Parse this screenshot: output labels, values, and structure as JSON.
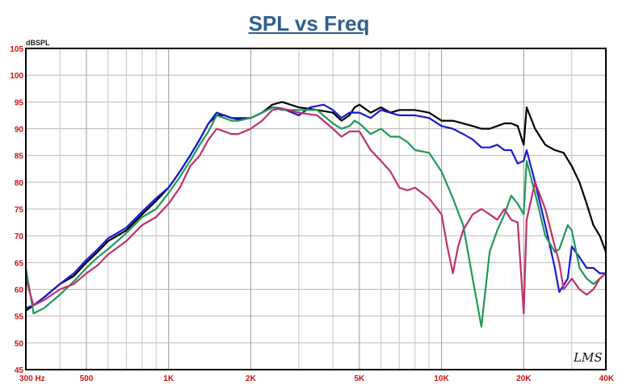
{
  "chart_data": {
    "type": "line",
    "title": "SPL vs Freq",
    "ylabel": "dBSPL",
    "xlabel": "",
    "xscale": "log",
    "xlim": [
      300,
      40000
    ],
    "ylim": [
      45,
      105
    ],
    "yticks": [
      45,
      50,
      55,
      60,
      65,
      70,
      75,
      80,
      85,
      90,
      95,
      100,
      105
    ],
    "xticks": [
      {
        "value": 300,
        "label": "300 Hz"
      },
      {
        "value": 500,
        "label": "500"
      },
      {
        "value": 1000,
        "label": "1K"
      },
      {
        "value": 2000,
        "label": "2K"
      },
      {
        "value": 5000,
        "label": "5K"
      },
      {
        "value": 10000,
        "label": "10K"
      },
      {
        "value": 20000,
        "label": "20K"
      },
      {
        "value": 40000,
        "label": "40K"
      }
    ],
    "grid": true,
    "watermark": "LMS",
    "series": [
      {
        "color": "#000000",
        "points": [
          [
            300,
            56
          ],
          [
            320,
            57
          ],
          [
            350,
            58.5
          ],
          [
            400,
            61
          ],
          [
            450,
            62.5
          ],
          [
            500,
            65
          ],
          [
            550,
            67
          ],
          [
            600,
            69
          ],
          [
            700,
            71
          ],
          [
            800,
            74
          ],
          [
            900,
            76.5
          ],
          [
            1000,
            79
          ],
          [
            1100,
            82
          ],
          [
            1200,
            85
          ],
          [
            1300,
            88
          ],
          [
            1400,
            91
          ],
          [
            1500,
            92.5
          ],
          [
            1600,
            92.5
          ],
          [
            1700,
            92
          ],
          [
            1800,
            91.8
          ],
          [
            2000,
            92
          ],
          [
            2200,
            93
          ],
          [
            2400,
            94.5
          ],
          [
            2600,
            95
          ],
          [
            3000,
            94
          ],
          [
            3500,
            93.5
          ],
          [
            4000,
            93
          ],
          [
            4300,
            91.5
          ],
          [
            4600,
            92.5
          ],
          [
            4800,
            94
          ],
          [
            5000,
            94.5
          ],
          [
            5500,
            93
          ],
          [
            6000,
            94
          ],
          [
            6500,
            93
          ],
          [
            7000,
            93.5
          ],
          [
            7500,
            93.5
          ],
          [
            8000,
            93.5
          ],
          [
            9000,
            93
          ],
          [
            10000,
            91.5
          ],
          [
            11000,
            91.5
          ],
          [
            12000,
            91
          ],
          [
            13000,
            90.5
          ],
          [
            14000,
            90
          ],
          [
            15000,
            90
          ],
          [
            16000,
            90.5
          ],
          [
            17000,
            91
          ],
          [
            18000,
            91
          ],
          [
            19000,
            90.5
          ],
          [
            20000,
            87
          ],
          [
            20500,
            94
          ],
          [
            22000,
            90
          ],
          [
            24000,
            87
          ],
          [
            26000,
            86
          ],
          [
            28000,
            85.5
          ],
          [
            30000,
            83
          ],
          [
            32000,
            80
          ],
          [
            34000,
            76
          ],
          [
            36000,
            72
          ],
          [
            38000,
            70
          ],
          [
            40000,
            67
          ]
        ]
      },
      {
        "color": "#1a1ad0",
        "points": [
          [
            300,
            56.5
          ],
          [
            320,
            57
          ],
          [
            350,
            58.5
          ],
          [
            400,
            61
          ],
          [
            450,
            63
          ],
          [
            500,
            65.5
          ],
          [
            550,
            67.5
          ],
          [
            600,
            69.5
          ],
          [
            700,
            71.5
          ],
          [
            800,
            74.5
          ],
          [
            900,
            77
          ],
          [
            1000,
            79
          ],
          [
            1100,
            82
          ],
          [
            1200,
            85
          ],
          [
            1300,
            88
          ],
          [
            1400,
            91
          ],
          [
            1500,
            93
          ],
          [
            1600,
            92.5
          ],
          [
            1700,
            92
          ],
          [
            1800,
            92
          ],
          [
            2000,
            92
          ],
          [
            2200,
            93
          ],
          [
            2400,
            94
          ],
          [
            2600,
            93.8
          ],
          [
            3000,
            92.5
          ],
          [
            3300,
            94
          ],
          [
            3700,
            94.5
          ],
          [
            4000,
            93.5
          ],
          [
            4300,
            92
          ],
          [
            4600,
            93
          ],
          [
            5000,
            93
          ],
          [
            5500,
            92
          ],
          [
            6000,
            93.5
          ],
          [
            7000,
            92.5
          ],
          [
            8000,
            92.5
          ],
          [
            9000,
            92
          ],
          [
            10000,
            90.5
          ],
          [
            11000,
            90
          ],
          [
            12000,
            89
          ],
          [
            13000,
            88
          ],
          [
            14000,
            86.5
          ],
          [
            15000,
            86.5
          ],
          [
            16000,
            87
          ],
          [
            17000,
            86
          ],
          [
            18000,
            86
          ],
          [
            19000,
            83.5
          ],
          [
            20000,
            84
          ],
          [
            20500,
            86
          ],
          [
            22000,
            80
          ],
          [
            24000,
            72
          ],
          [
            26000,
            64
          ],
          [
            27000,
            59.5
          ],
          [
            29000,
            62
          ],
          [
            30000,
            68
          ],
          [
            32000,
            66
          ],
          [
            34000,
            64
          ],
          [
            36000,
            64
          ],
          [
            38000,
            63
          ],
          [
            40000,
            63
          ]
        ]
      },
      {
        "color": "#1f9a55",
        "points": [
          [
            300,
            64
          ],
          [
            320,
            55.5
          ],
          [
            350,
            56.5
          ],
          [
            400,
            59
          ],
          [
            450,
            61.5
          ],
          [
            500,
            64
          ],
          [
            550,
            66
          ],
          [
            600,
            67.5
          ],
          [
            700,
            70.5
          ],
          [
            800,
            73.5
          ],
          [
            900,
            75
          ],
          [
            1000,
            78
          ],
          [
            1100,
            81
          ],
          [
            1200,
            84
          ],
          [
            1300,
            87
          ],
          [
            1400,
            89.5
          ],
          [
            1500,
            92.5
          ],
          [
            1600,
            92
          ],
          [
            1700,
            91.5
          ],
          [
            1800,
            91.5
          ],
          [
            2000,
            92
          ],
          [
            2200,
            93
          ],
          [
            2400,
            94
          ],
          [
            2600,
            93.5
          ],
          [
            3000,
            93.5
          ],
          [
            3500,
            93.5
          ],
          [
            4000,
            91
          ],
          [
            4300,
            90
          ],
          [
            4600,
            90.5
          ],
          [
            4800,
            91.5
          ],
          [
            5000,
            91
          ],
          [
            5500,
            89
          ],
          [
            6000,
            90
          ],
          [
            6500,
            88.5
          ],
          [
            7000,
            88.5
          ],
          [
            7500,
            87.5
          ],
          [
            8000,
            86
          ],
          [
            9000,
            85.5
          ],
          [
            10000,
            82
          ],
          [
            11000,
            77
          ],
          [
            12000,
            72
          ],
          [
            13000,
            62
          ],
          [
            14000,
            53
          ],
          [
            15000,
            67
          ],
          [
            16000,
            71
          ],
          [
            17000,
            74
          ],
          [
            18000,
            77.5
          ],
          [
            19000,
            76
          ],
          [
            20000,
            74
          ],
          [
            20500,
            84
          ],
          [
            22000,
            78
          ],
          [
            24000,
            70
          ],
          [
            26000,
            67
          ],
          [
            27000,
            67.5
          ],
          [
            29000,
            72
          ],
          [
            30000,
            71
          ],
          [
            32000,
            64
          ],
          [
            34000,
            62
          ],
          [
            36000,
            61
          ],
          [
            38000,
            62
          ],
          [
            40000,
            63
          ]
        ]
      },
      {
        "color": "#c0306a",
        "points": [
          [
            300,
            62
          ],
          [
            320,
            57
          ],
          [
            350,
            58
          ],
          [
            400,
            60
          ],
          [
            450,
            61
          ],
          [
            500,
            63
          ],
          [
            550,
            64.5
          ],
          [
            600,
            66.5
          ],
          [
            700,
            69
          ],
          [
            800,
            72
          ],
          [
            900,
            73.5
          ],
          [
            1000,
            76
          ],
          [
            1100,
            79
          ],
          [
            1200,
            83
          ],
          [
            1300,
            85
          ],
          [
            1400,
            88
          ],
          [
            1500,
            90
          ],
          [
            1600,
            89.5
          ],
          [
            1700,
            89
          ],
          [
            1800,
            89
          ],
          [
            2000,
            90
          ],
          [
            2200,
            91.5
          ],
          [
            2400,
            93.5
          ],
          [
            2600,
            93.8
          ],
          [
            3000,
            93
          ],
          [
            3500,
            92.5
          ],
          [
            4000,
            90
          ],
          [
            4300,
            88.5
          ],
          [
            4600,
            89.5
          ],
          [
            5000,
            89.5
          ],
          [
            5500,
            86
          ],
          [
            6000,
            84
          ],
          [
            6500,
            82
          ],
          [
            7000,
            79
          ],
          [
            7500,
            78.5
          ],
          [
            8000,
            79
          ],
          [
            9000,
            77
          ],
          [
            10000,
            74
          ],
          [
            10500,
            68
          ],
          [
            11000,
            63
          ],
          [
            11500,
            68
          ],
          [
            12000,
            71
          ],
          [
            13000,
            74
          ],
          [
            14000,
            75
          ],
          [
            15000,
            74
          ],
          [
            16000,
            73
          ],
          [
            17000,
            75
          ],
          [
            18000,
            73
          ],
          [
            19000,
            72.5
          ],
          [
            20000,
            55.5
          ],
          [
            20500,
            73
          ],
          [
            22000,
            80
          ],
          [
            24000,
            75
          ],
          [
            26000,
            68
          ],
          [
            27000,
            65
          ],
          [
            28000,
            60
          ],
          [
            29000,
            61
          ],
          [
            30000,
            62
          ],
          [
            32000,
            60
          ],
          [
            34000,
            59
          ],
          [
            36000,
            60
          ],
          [
            38000,
            62
          ],
          [
            40000,
            63
          ]
        ]
      }
    ]
  }
}
